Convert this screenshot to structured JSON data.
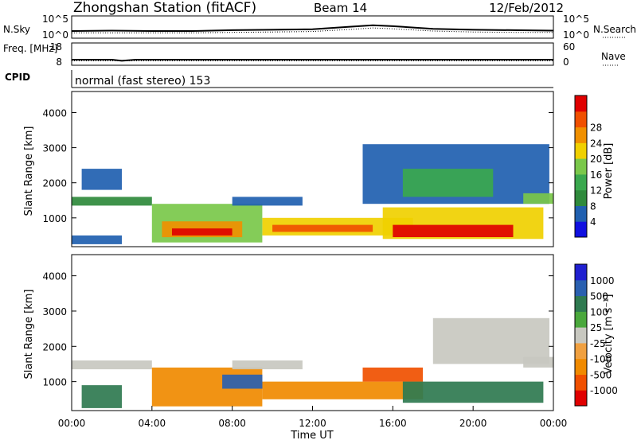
{
  "header": {
    "station": "Zhongshan Station (fitACF)",
    "beam": "Beam 14",
    "date": "12/Feb/2012"
  },
  "cpid": {
    "label": "CPID",
    "program": "normal (fast stereo) 153"
  },
  "colors": {
    "power": [
      "#1010e0",
      "#2060b0",
      "#2f8a3c",
      "#3aa84e",
      "#7ac84a",
      "#f0d000",
      "#f09000",
      "#f05000",
      "#e00000"
    ],
    "velocity": [
      "#e00000",
      "#f05000",
      "#f08a00",
      "#f0a040",
      "#c8c8c0",
      "#4aa83c",
      "#2f7a50",
      "#2a60b0",
      "#2020d0"
    ]
  },
  "chart_data": [
    {
      "type": "line",
      "panel": "noise",
      "left_label": "N.Sky",
      "right_label": "N.Search",
      "left_ticks": [
        "10^5",
        "10^0"
      ],
      "right_ticks": [
        "10^5",
        "10^0"
      ],
      "scale": "log",
      "series": [
        {
          "name": "N.Sky",
          "style": "solid",
          "x": [
            0,
            2,
            4,
            6,
            8,
            10,
            12,
            14,
            15,
            16,
            18,
            20,
            22,
            24
          ],
          "y": [
            1.6,
            1.7,
            1.6,
            1.6,
            1.8,
            1.9,
            2.0,
            2.6,
            2.9,
            2.7,
            2.1,
            1.9,
            1.8,
            1.7
          ]
        },
        {
          "name": "N.Search",
          "style": "dotted",
          "x": [
            0,
            2,
            4,
            6,
            8,
            10,
            12,
            14,
            15,
            16,
            18,
            20,
            22,
            24
          ],
          "y": [
            1.2,
            1.2,
            1.2,
            1.2,
            1.3,
            1.4,
            1.5,
            2.0,
            2.3,
            2.1,
            1.6,
            1.4,
            1.3,
            1.3
          ]
        }
      ],
      "ylim": [
        0,
        5
      ]
    },
    {
      "type": "line",
      "panel": "frequency",
      "left_label": "Freq. [MHz]",
      "right_label": "Nave",
      "left_ticks": [
        "18",
        "8"
      ],
      "right_ticks": [
        "60",
        "0"
      ],
      "series": [
        {
          "name": "Freq.",
          "style": "solid",
          "x": [
            0,
            2,
            2.5,
            3.2,
            4,
            8,
            12,
            16,
            20,
            24
          ],
          "y": [
            10.5,
            10.5,
            10.0,
            10.5,
            10.5,
            10.5,
            10.5,
            10.5,
            10.5,
            10.5
          ]
        },
        {
          "name": "Nave",
          "style": "dotted",
          "x": [
            0,
            24
          ],
          "y": [
            12,
            12
          ]
        }
      ],
      "ylim": [
        8,
        18
      ]
    },
    {
      "type": "heatmap",
      "panel": "power",
      "ylabel": "Slant Range [km]",
      "yticks": [
        "1000",
        "2000",
        "3000",
        "4000"
      ],
      "ylim": [
        180,
        4600
      ],
      "colorbar_label": "Power [dB]",
      "colorbar_ticks": [
        "4",
        "8",
        "12",
        "16",
        "20",
        "24",
        "28"
      ],
      "regions": [
        {
          "x": [
            0.0,
            4.0
          ],
          "y": [
            1350,
            1600
          ],
          "level": 2
        },
        {
          "x": [
            0.5,
            2.5
          ],
          "y": [
            1800,
            2400
          ],
          "level": 1
        },
        {
          "x": [
            0.0,
            2.5
          ],
          "y": [
            250,
            500
          ],
          "level": 1
        },
        {
          "x": [
            4.0,
            9.5
          ],
          "y": [
            300,
            1400
          ],
          "level": 4
        },
        {
          "x": [
            4.5,
            8.5
          ],
          "y": [
            450,
            900
          ],
          "level": 6
        },
        {
          "x": [
            5.0,
            8.0
          ],
          "y": [
            500,
            700
          ],
          "level": 8
        },
        {
          "x": [
            8.0,
            11.5
          ],
          "y": [
            1350,
            1600
          ],
          "level": 1
        },
        {
          "x": [
            9.5,
            17.0
          ],
          "y": [
            500,
            1000
          ],
          "level": 5
        },
        {
          "x": [
            10.0,
            15.0
          ],
          "y": [
            600,
            800
          ],
          "level": 7
        },
        {
          "x": [
            15.5,
            23.5
          ],
          "y": [
            400,
            1300
          ],
          "level": 5
        },
        {
          "x": [
            16.0,
            22.0
          ],
          "y": [
            450,
            800
          ],
          "level": 8
        },
        {
          "x": [
            14.5,
            23.8
          ],
          "y": [
            1400,
            3100
          ],
          "level": 1
        },
        {
          "x": [
            16.5,
            21.0
          ],
          "y": [
            1600,
            2400
          ],
          "level": 3
        },
        {
          "x": [
            22.5,
            24.0
          ],
          "y": [
            1400,
            1700
          ],
          "level": 4
        }
      ]
    },
    {
      "type": "heatmap",
      "panel": "velocity",
      "ylabel": "Slant Range [km]",
      "yticks": [
        "1000",
        "2000",
        "3000",
        "4000"
      ],
      "ylim": [
        180,
        4600
      ],
      "xlabel": "Time UT",
      "xticks": [
        "00:00",
        "04:00",
        "08:00",
        "12:00",
        "16:00",
        "20:00",
        "00:00"
      ],
      "xlim": [
        0,
        24
      ],
      "colorbar_label": "Velocity [m s⁻¹]",
      "colorbar_ticks": [
        "-1000",
        "-500",
        "-100",
        "-25",
        "25",
        "100",
        "500",
        "1000"
      ],
      "regions": [
        {
          "x": [
            0.0,
            4.0
          ],
          "y": [
            1350,
            1600
          ],
          "level": 4
        },
        {
          "x": [
            0.5,
            2.5
          ],
          "y": [
            250,
            900
          ],
          "level": 6
        },
        {
          "x": [
            4.0,
            9.5
          ],
          "y": [
            300,
            1400
          ],
          "level": 2
        },
        {
          "x": [
            7.5,
            9.5
          ],
          "y": [
            800,
            1200
          ],
          "level": 7
        },
        {
          "x": [
            8.0,
            11.5
          ],
          "y": [
            1350,
            1600
          ],
          "level": 4
        },
        {
          "x": [
            9.5,
            17.5
          ],
          "y": [
            500,
            1000
          ],
          "level": 2
        },
        {
          "x": [
            14.5,
            17.5
          ],
          "y": [
            1000,
            1400
          ],
          "level": 1
        },
        {
          "x": [
            16.5,
            23.5
          ],
          "y": [
            400,
            1000
          ],
          "level": 6
        },
        {
          "x": [
            18.0,
            23.8
          ],
          "y": [
            1500,
            2800
          ],
          "level": 4
        },
        {
          "x": [
            22.5,
            24.0
          ],
          "y": [
            1400,
            1700
          ],
          "level": 4
        }
      ]
    }
  ]
}
